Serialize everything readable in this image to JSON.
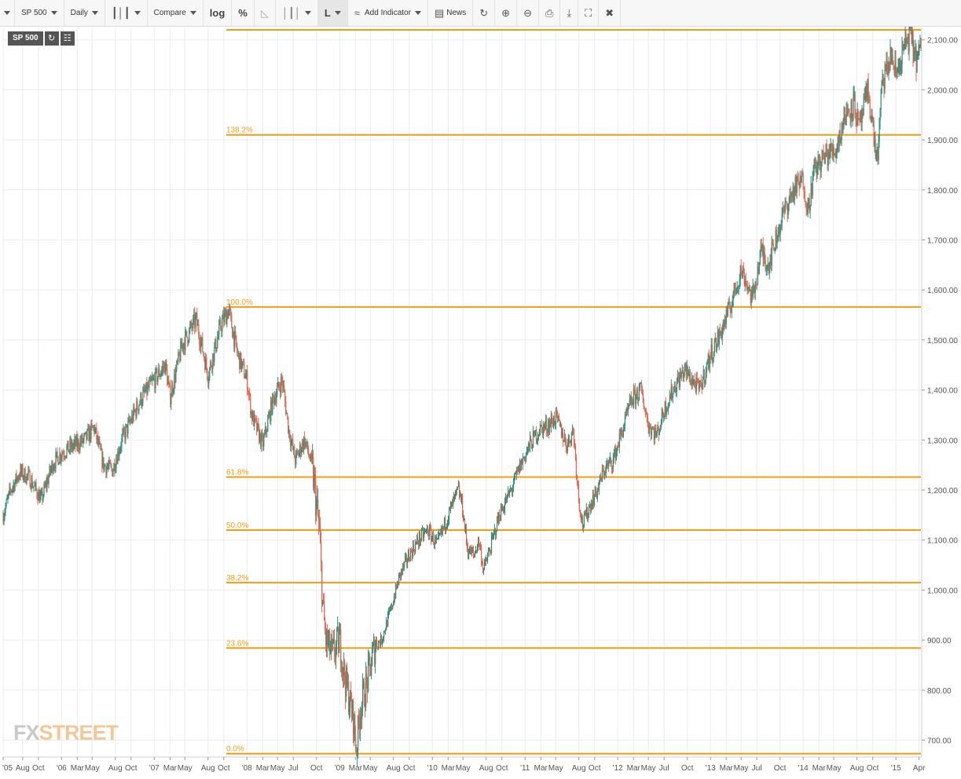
{
  "toolbar": {
    "symbol": "SP 500",
    "interval": "Daily",
    "compare": "Compare",
    "log": "log",
    "percent": "%",
    "line_type": "L",
    "add_indicator": "Add Indicator",
    "news": "News"
  },
  "badges": {
    "symbol": "SP 500"
  },
  "watermark": {
    "fx": "FX",
    "street": "STREET"
  },
  "colors": {
    "fib": "#f39c12",
    "fib_label": "#f39c12",
    "up": "#2f8f7a",
    "down": "#e0664e",
    "grid": "#ececec",
    "axis_text": "#555555"
  },
  "chart_data": {
    "type": "candlestick",
    "title": "",
    "xlabel": "",
    "ylabel": "",
    "ylim": [
      670,
      2120
    ],
    "yticks": [
      700,
      800,
      900,
      1000,
      1100,
      1200,
      1300,
      1400,
      1500,
      1600,
      1700,
      1800,
      1900,
      2000,
      2100
    ],
    "ytick_labels": [
      "700.00",
      "800.00",
      "900.00",
      "1,000.00",
      "1,100.00",
      "1,200.00",
      "1,300.00",
      "1,400.00",
      "1,500.00",
      "1,600.00",
      "1,700.00",
      "1,800.00",
      "1,900.00",
      "2,000.00",
      "2,100.00"
    ],
    "xlim": [
      2005.37,
      2015.27
    ],
    "xticks": [
      {
        "t": 2005.37,
        "label": "'05"
      },
      {
        "t": 2005.58,
        "label": "Aug"
      },
      {
        "t": 2005.75,
        "label": "Oct"
      },
      {
        "t": 2006.0,
        "label": "'06"
      },
      {
        "t": 2006.17,
        "label": "Mar"
      },
      {
        "t": 2006.33,
        "label": "May"
      },
      {
        "t": 2006.58,
        "label": "Aug"
      },
      {
        "t": 2006.75,
        "label": "Oct"
      },
      {
        "t": 2007.0,
        "label": "'07"
      },
      {
        "t": 2007.17,
        "label": "Mar"
      },
      {
        "t": 2007.33,
        "label": "May"
      },
      {
        "t": 2007.58,
        "label": "Aug"
      },
      {
        "t": 2007.75,
        "label": "Oct"
      },
      {
        "t": 2008.0,
        "label": "'08"
      },
      {
        "t": 2008.17,
        "label": "Mar"
      },
      {
        "t": 2008.33,
        "label": "May"
      },
      {
        "t": 2008.5,
        "label": "Jul"
      },
      {
        "t": 2008.75,
        "label": "Oct"
      },
      {
        "t": 2009.0,
        "label": "'09"
      },
      {
        "t": 2009.17,
        "label": "Mar"
      },
      {
        "t": 2009.33,
        "label": "May"
      },
      {
        "t": 2009.58,
        "label": "Aug"
      },
      {
        "t": 2009.75,
        "label": "Oct"
      },
      {
        "t": 2010.0,
        "label": "'10"
      },
      {
        "t": 2010.17,
        "label": "Mar"
      },
      {
        "t": 2010.33,
        "label": "May"
      },
      {
        "t": 2010.58,
        "label": "Aug"
      },
      {
        "t": 2010.75,
        "label": "Oct"
      },
      {
        "t": 2011.0,
        "label": "'11"
      },
      {
        "t": 2011.17,
        "label": "Mar"
      },
      {
        "t": 2011.33,
        "label": "May"
      },
      {
        "t": 2011.58,
        "label": "Aug"
      },
      {
        "t": 2011.75,
        "label": "Oct"
      },
      {
        "t": 2012.0,
        "label": "'12"
      },
      {
        "t": 2012.17,
        "label": "Mar"
      },
      {
        "t": 2012.33,
        "label": "May"
      },
      {
        "t": 2012.5,
        "label": "Jul"
      },
      {
        "t": 2012.75,
        "label": "Oct"
      },
      {
        "t": 2013.0,
        "label": "'13"
      },
      {
        "t": 2013.17,
        "label": "Mar"
      },
      {
        "t": 2013.33,
        "label": "May"
      },
      {
        "t": 2013.5,
        "label": "Jul"
      },
      {
        "t": 2013.75,
        "label": "Oct"
      },
      {
        "t": 2014.0,
        "label": "'14"
      },
      {
        "t": 2014.17,
        "label": "Mar"
      },
      {
        "t": 2014.33,
        "label": "May"
      },
      {
        "t": 2014.58,
        "label": "Aug"
      },
      {
        "t": 2014.75,
        "label": "Oct"
      },
      {
        "t": 2015.0,
        "label": "'15"
      },
      {
        "t": 2015.25,
        "label": "Apr"
      }
    ],
    "fib_levels": [
      {
        "label": "138.2%",
        "value": 1910
      },
      {
        "label": "100.0%",
        "value": 1566
      },
      {
        "label": "61.8%",
        "value": 1226
      },
      {
        "label": "50.0%",
        "value": 1120
      },
      {
        "label": "38.2%",
        "value": 1015
      },
      {
        "label": "23.6%",
        "value": 884
      },
      {
        "label": "0.0%",
        "value": 673
      }
    ],
    "fib_top": 2120,
    "price_path": [
      [
        2005.37,
        1150
      ],
      [
        2005.45,
        1200
      ],
      [
        2005.55,
        1235
      ],
      [
        2005.65,
        1225
      ],
      [
        2005.78,
        1180
      ],
      [
        2005.9,
        1250
      ],
      [
        2006.0,
        1275
      ],
      [
        2006.1,
        1285
      ],
      [
        2006.25,
        1300
      ],
      [
        2006.35,
        1325
      ],
      [
        2006.45,
        1250
      ],
      [
        2006.55,
        1240
      ],
      [
        2006.65,
        1300
      ],
      [
        2006.85,
        1380
      ],
      [
        2007.0,
        1420
      ],
      [
        2007.12,
        1450
      ],
      [
        2007.17,
        1385
      ],
      [
        2007.3,
        1490
      ],
      [
        2007.45,
        1540
      ],
      [
        2007.5,
        1500
      ],
      [
        2007.58,
        1430
      ],
      [
        2007.72,
        1530
      ],
      [
        2007.8,
        1560
      ],
      [
        2007.9,
        1470
      ],
      [
        2008.0,
        1420
      ],
      [
        2008.05,
        1350
      ],
      [
        2008.17,
        1290
      ],
      [
        2008.28,
        1380
      ],
      [
        2008.38,
        1420
      ],
      [
        2008.45,
        1320
      ],
      [
        2008.52,
        1260
      ],
      [
        2008.62,
        1300
      ],
      [
        2008.7,
        1250
      ],
      [
        2008.78,
        1120
      ],
      [
        2008.82,
        960
      ],
      [
        2008.85,
        900
      ],
      [
        2008.92,
        870
      ],
      [
        2009.0,
        900
      ],
      [
        2009.05,
        830
      ],
      [
        2009.15,
        740
      ],
      [
        2009.18,
        680
      ],
      [
        2009.22,
        760
      ],
      [
        2009.3,
        820
      ],
      [
        2009.38,
        890
      ],
      [
        2009.45,
        900
      ],
      [
        2009.55,
        960
      ],
      [
        2009.65,
        1030
      ],
      [
        2009.75,
        1070
      ],
      [
        2009.85,
        1100
      ],
      [
        2009.95,
        1120
      ],
      [
        2010.05,
        1090
      ],
      [
        2010.15,
        1140
      ],
      [
        2010.28,
        1200
      ],
      [
        2010.32,
        1170
      ],
      [
        2010.38,
        1080
      ],
      [
        2010.45,
        1070
      ],
      [
        2010.5,
        1100
      ],
      [
        2010.55,
        1040
      ],
      [
        2010.62,
        1080
      ],
      [
        2010.72,
        1150
      ],
      [
        2010.85,
        1200
      ],
      [
        2010.95,
        1250
      ],
      [
        2011.05,
        1290
      ],
      [
        2011.15,
        1320
      ],
      [
        2011.25,
        1330
      ],
      [
        2011.33,
        1345
      ],
      [
        2011.45,
        1290
      ],
      [
        2011.52,
        1320
      ],
      [
        2011.58,
        1180
      ],
      [
        2011.62,
        1130
      ],
      [
        2011.7,
        1170
      ],
      [
        2011.78,
        1200
      ],
      [
        2011.85,
        1240
      ],
      [
        2011.95,
        1260
      ],
      [
        2012.05,
        1320
      ],
      [
        2012.15,
        1380
      ],
      [
        2012.25,
        1400
      ],
      [
        2012.33,
        1330
      ],
      [
        2012.42,
        1310
      ],
      [
        2012.5,
        1360
      ],
      [
        2012.62,
        1410
      ],
      [
        2012.72,
        1440
      ],
      [
        2012.8,
        1420
      ],
      [
        2012.88,
        1400
      ],
      [
        2013.0,
        1470
      ],
      [
        2013.1,
        1510
      ],
      [
        2013.2,
        1560
      ],
      [
        2013.33,
        1640
      ],
      [
        2013.38,
        1620
      ],
      [
        2013.45,
        1580
      ],
      [
        2013.55,
        1680
      ],
      [
        2013.62,
        1650
      ],
      [
        2013.7,
        1700
      ],
      [
        2013.8,
        1760
      ],
      [
        2013.9,
        1800
      ],
      [
        2014.0,
        1820
      ],
      [
        2014.05,
        1760
      ],
      [
        2014.12,
        1840
      ],
      [
        2014.25,
        1870
      ],
      [
        2014.35,
        1880
      ],
      [
        2014.45,
        1950
      ],
      [
        2014.55,
        1975
      ],
      [
        2014.6,
        1920
      ],
      [
        2014.7,
        2000
      ],
      [
        2014.78,
        1880
      ],
      [
        2014.8,
        1860
      ],
      [
        2014.85,
        2010
      ],
      [
        2014.95,
        2070
      ],
      [
        2015.0,
        2030
      ],
      [
        2015.08,
        2080
      ],
      [
        2015.15,
        2110
      ],
      [
        2015.22,
        2060
      ],
      [
        2015.27,
        2080
      ]
    ]
  }
}
